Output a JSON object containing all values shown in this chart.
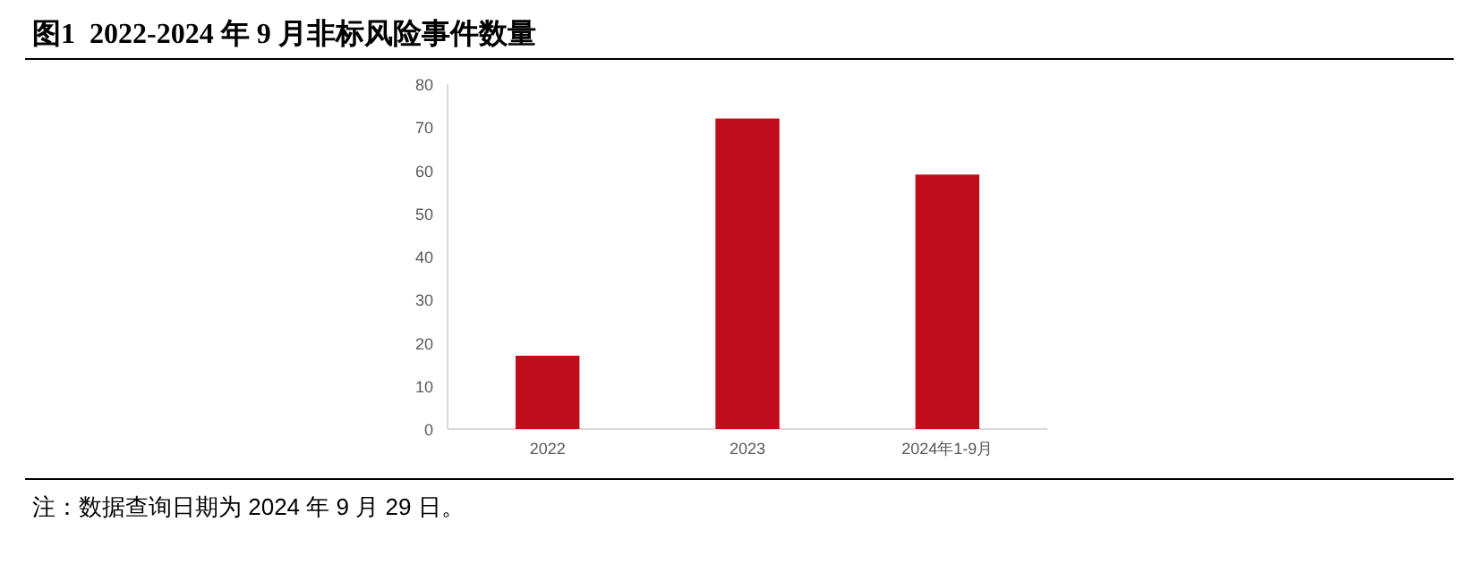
{
  "chart_data": {
    "type": "bar",
    "title": "图1  2022-2024 年 9 月非标风险事件数量",
    "categories": [
      "2022",
      "2023",
      "2024年1-9月"
    ],
    "series": [
      {
        "color": "#c00d1b",
        "values": [
          17,
          72,
          59
        ]
      }
    ],
    "ylim": [
      0,
      80
    ],
    "yticks": [
      0,
      10,
      20,
      30,
      40,
      50,
      60,
      70,
      80
    ],
    "grid": false,
    "annotations": [
      "注：数据查询日期为 2024 年 9 月 29 日。"
    ]
  }
}
